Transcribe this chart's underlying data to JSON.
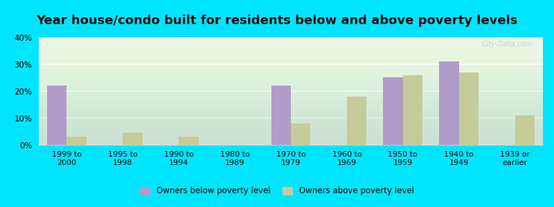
{
  "title": "Year house/condo built for residents below and above poverty levels",
  "categories": [
    "1999 to\n2000",
    "1995 to\n1998",
    "1990 to\n1994",
    "1980 to\n1989",
    "1970 to\n1979",
    "1960 to\n1969",
    "1950 to\n1959",
    "1940 to\n1949",
    "1939 or\nearlier"
  ],
  "below_poverty": [
    22,
    0,
    0,
    0,
    22,
    0,
    25,
    31,
    0
  ],
  "above_poverty": [
    3,
    4.5,
    3,
    0,
    8,
    18,
    26,
    27,
    11
  ],
  "below_color": "#b09cc8",
  "above_color": "#c5cc99",
  "background_color": "#e8f5e8",
  "outer_background": "#00e5ff",
  "ylim": [
    0,
    40
  ],
  "yticks": [
    0,
    10,
    20,
    30,
    40
  ],
  "legend_below": "Owners below poverty level",
  "legend_above": "Owners above poverty level",
  "title_fontsize": 13,
  "bar_width": 0.35,
  "grid_color": "#ffffff",
  "axis_border_color": "#cccccc",
  "watermark": "City-Data.com"
}
